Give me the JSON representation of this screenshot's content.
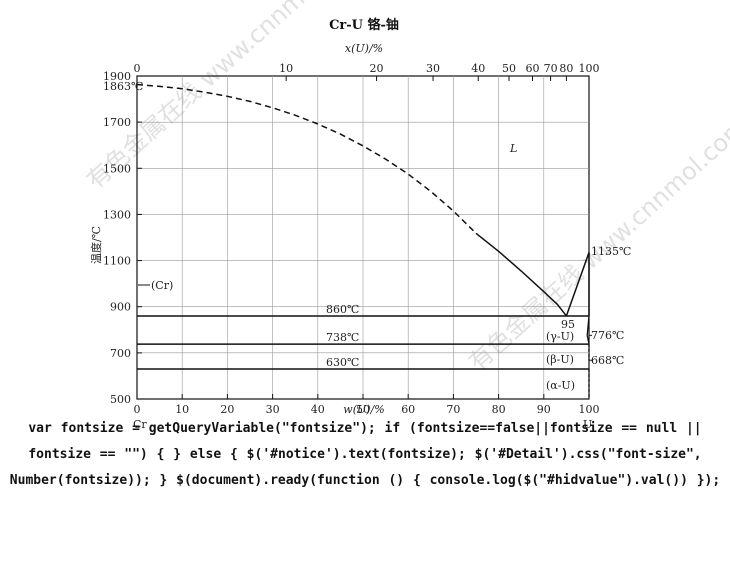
{
  "title": "Cr-U 铬-铀",
  "top_axis_label": "x(U)/%",
  "bottom_axis_label": "w(U)/%",
  "y_axis_label": "温度/℃",
  "left_element": "Cr",
  "right_element": "U",
  "watermark_1": "有色金属在线 www.cnnmol.com",
  "watermark_2": "有色金属在线 www.cnnmol.com",
  "chart_data": {
    "type": "line",
    "y_ticks": [
      500,
      700,
      900,
      1100,
      1300,
      1500,
      1700,
      1900
    ],
    "ylim": [
      500,
      1900
    ],
    "bottom_ticks": [
      0,
      10,
      20,
      30,
      40,
      50,
      60,
      70,
      80,
      90,
      100
    ],
    "xlim": [
      0,
      100
    ],
    "top_ticks": [
      {
        "label": "0",
        "w": 0
      },
      {
        "label": "10",
        "w": 33
      },
      {
        "label": "20",
        "w": 53
      },
      {
        "label": "30",
        "w": 65.5
      },
      {
        "label": "40",
        "w": 75.5
      },
      {
        "label": "50",
        "w": 82.3
      },
      {
        "label": "60",
        "w": 87.5
      },
      {
        "label": "70",
        "w": 91.5
      },
      {
        "label": "80",
        "w": 95
      },
      {
        "label": "100",
        "w": 100
      }
    ],
    "liquidus_dashed": [
      [
        0,
        1863
      ],
      [
        5,
        1855
      ],
      [
        10,
        1845
      ],
      [
        15,
        1830
      ],
      [
        20,
        1812
      ],
      [
        25,
        1790
      ],
      [
        30,
        1762
      ],
      [
        35,
        1730
      ],
      [
        40,
        1692
      ],
      [
        45,
        1648
      ],
      [
        50,
        1597
      ],
      [
        55,
        1540
      ],
      [
        60,
        1475
      ],
      [
        65,
        1400
      ],
      [
        70,
        1315
      ],
      [
        75,
        1218
      ]
    ],
    "liquidus_solid": [
      [
        75,
        1218
      ],
      [
        80,
        1140
      ],
      [
        85,
        1055
      ],
      [
        90,
        965
      ],
      [
        93,
        910
      ],
      [
        95,
        860
      ]
    ],
    "u_liquidus": [
      [
        95,
        860
      ],
      [
        100,
        1135
      ]
    ],
    "horizontals": [
      {
        "T": 860,
        "label": "860℃"
      },
      {
        "T": 738,
        "label": "738℃"
      },
      {
        "T": 630,
        "label": "630℃"
      }
    ],
    "annotations": {
      "cr_melting": "1863℃",
      "u_melting": "1135℃",
      "eutectic": "95",
      "gamma_to_beta": "776℃",
      "beta_to_alpha": "668℃",
      "liquid": "L",
      "cr_phase": "(Cr)",
      "gamma_u": "(γ-U)",
      "beta_u": "(β-U)",
      "alpha_u": "(α-U)"
    }
  },
  "code_text": "var fontsize = getQueryVariable(\"fontsize\"); if (fontsize==false||fontsize == null || fontsize == \"\") { } else { $('#notice').text(fontsize); $('#Detail').css(\"font-size\", Number(fontsize)); } $(document).ready(function () { console.log($(\"#hidvalue\").val()) });"
}
